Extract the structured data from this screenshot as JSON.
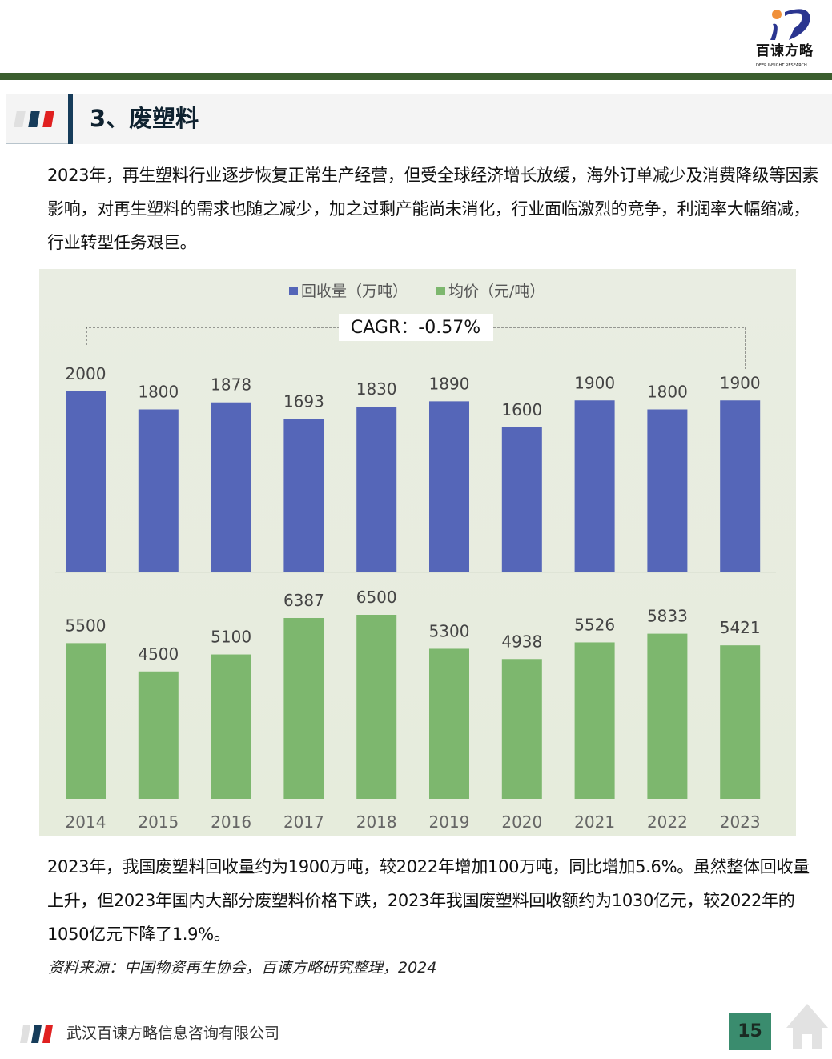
{
  "header": {
    "logo_text": "百谏方略",
    "logo_subtext": "DEEP INSIGHT RESEARCH"
  },
  "section": {
    "title": "3、废塑料"
  },
  "paragraph1": "2023年，再生塑料行业逐步恢复正常生产经营，但受全球经济增长放缓，海外订单减少及消费降级等因素影响，对再生塑料的需求也随之减少，加之过剩产能尚未消化，行业面临激烈的竞争，利润率大幅缩减，行业转型任务艰巨。",
  "chart_data": {
    "type": "bar",
    "categories": [
      "2014",
      "2015",
      "2016",
      "2017",
      "2018",
      "2019",
      "2020",
      "2021",
      "2022",
      "2023"
    ],
    "series": [
      {
        "name": "回收量（万吨）",
        "color": "#5566b8",
        "values": [
          2000,
          1800,
          1878,
          1693,
          1830,
          1890,
          1600,
          1900,
          1800,
          1900
        ]
      },
      {
        "name": "均价（元/吨）",
        "color": "#7db76e",
        "values": [
          5500,
          4500,
          5100,
          6387,
          6500,
          5300,
          4938,
          5526,
          5833,
          5421
        ]
      }
    ],
    "annotation": "CAGR：-0.57%",
    "legend_position": "top",
    "grid": false
  },
  "paragraph2": "2023年，我国废塑料回收量约为1900万吨，较2022年增加100万吨，同比增加5.6%。虽然整体回收量上升，但2023年国内大部分废塑料价格下跌，2023年我国废塑料回收额约为1030亿元，较2022年的1050亿元下降了1.9%。",
  "source": "资料来源：中国物资再生协会，百谏方略研究整理，2024",
  "footer": {
    "company": "武汉百谏方略信息咨询有限公司",
    "page_number": "15"
  }
}
